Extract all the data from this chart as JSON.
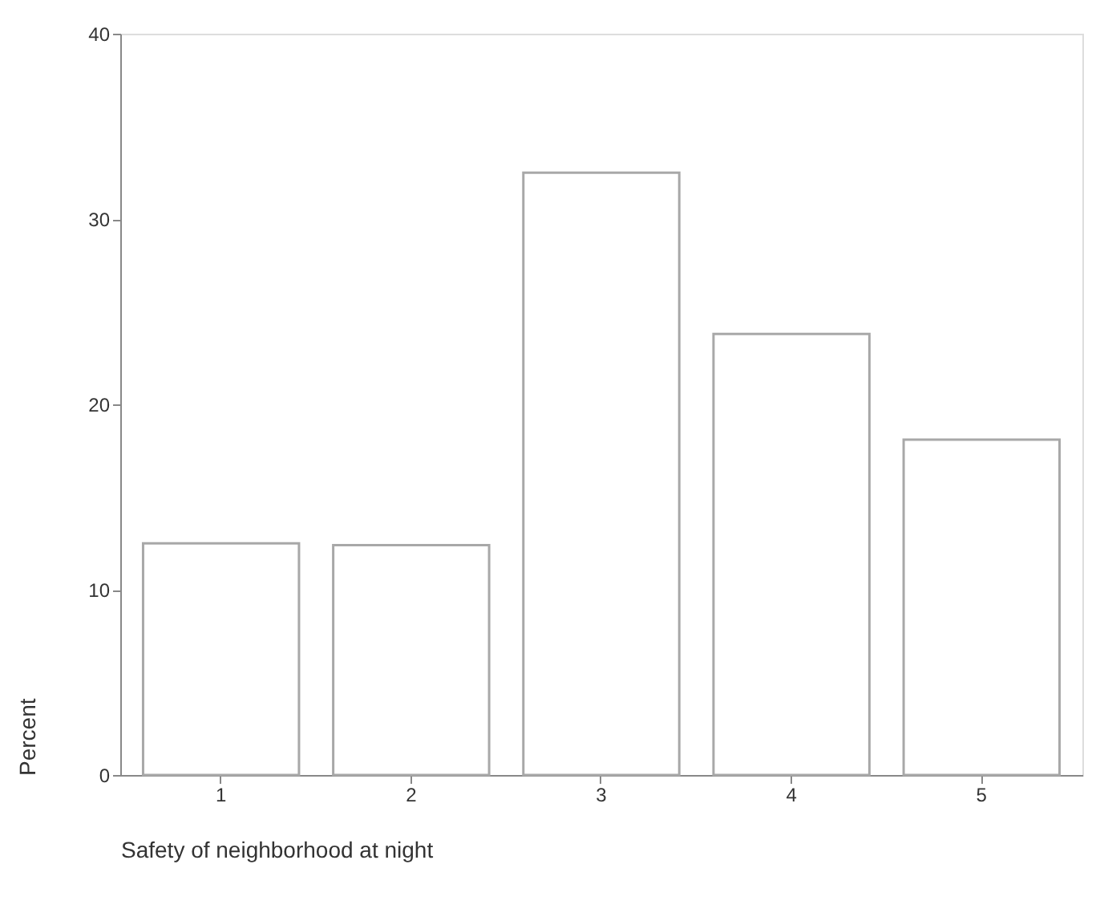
{
  "chart_data": {
    "type": "bar",
    "xlabel": "Safety of neighborhood at night",
    "ylabel": "Percent",
    "categories": [
      "1",
      "2",
      "3",
      "4",
      "5"
    ],
    "series": [
      {
        "color": "#ffffff",
        "values": [
          12.5,
          12.4,
          32.5,
          23.8,
          18.1
        ]
      }
    ],
    "ylim": [
      0,
      40
    ],
    "yticks": [
      0,
      10,
      20,
      30,
      40
    ],
    "grid": false,
    "legend": false
  }
}
